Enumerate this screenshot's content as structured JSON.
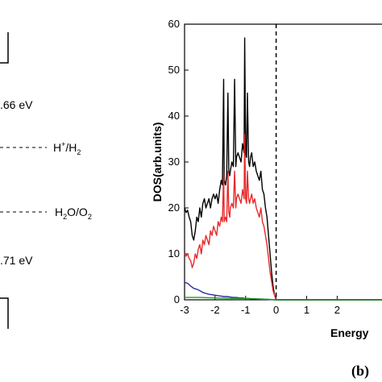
{
  "left_panel": {
    "energy_top": ".66 eV",
    "level_h": "H",
    "level_h_sup": "+",
    "level_h_rest": "/H",
    "level_h_sub": "2",
    "level_o": "H",
    "level_o_sub1": "2",
    "level_o_mid": "O/O",
    "level_o_sub2": "2",
    "energy_bottom": ".71 eV"
  },
  "panel_label": "(b)",
  "colors": {
    "total": "#000000",
    "red": "#e8292b",
    "blue": "#2b2ba3",
    "green": "#1f9a1f"
  },
  "chart_data": {
    "type": "line",
    "title": "",
    "xlabel": "Energy",
    "ylabel": "DOS(arb.units)",
    "xlim": [
      -3,
      3.6
    ],
    "ylim": [
      0,
      60
    ],
    "xticks": [
      "-3",
      "-2",
      "-1",
      "0",
      "1",
      "2"
    ],
    "yticks": [
      "0",
      "10",
      "20",
      "30",
      "40",
      "50",
      "60"
    ],
    "fermi_level": 0,
    "series": [
      {
        "color": "#000000",
        "x": [
          -3.0,
          -2.95,
          -2.9,
          -2.85,
          -2.8,
          -2.75,
          -2.7,
          -2.65,
          -2.6,
          -2.55,
          -2.5,
          -2.45,
          -2.4,
          -2.35,
          -2.3,
          -2.25,
          -2.2,
          -2.15,
          -2.1,
          -2.05,
          -2.0,
          -1.95,
          -1.9,
          -1.85,
          -1.8,
          -1.76,
          -1.72,
          -1.7,
          -1.66,
          -1.62,
          -1.58,
          -1.55,
          -1.52,
          -1.5,
          -1.45,
          -1.4,
          -1.36,
          -1.32,
          -1.3,
          -1.25,
          -1.2,
          -1.15,
          -1.1,
          -1.05,
          -1.03,
          -1.0,
          -0.97,
          -0.94,
          -0.9,
          -0.87,
          -0.84,
          -0.8,
          -0.75,
          -0.7,
          -0.65,
          -0.6,
          -0.55,
          -0.5,
          -0.45,
          -0.4,
          -0.35,
          -0.3,
          -0.25,
          -0.2,
          -0.15,
          -0.1,
          -0.05,
          0.0,
          0.5,
          1.0,
          1.5,
          2.0,
          2.5,
          3.0,
          3.6
        ],
        "y": [
          20,
          19,
          19.5,
          18,
          17,
          14,
          13,
          15,
          18,
          17,
          20,
          18,
          21,
          22,
          20,
          21,
          22,
          20,
          22,
          23,
          22,
          23,
          21,
          24,
          26,
          25,
          48,
          26,
          25,
          27,
          45,
          28,
          27,
          28,
          30,
          29,
          48,
          29,
          31,
          32,
          31,
          30,
          34,
          32,
          57,
          32,
          31,
          45,
          30,
          29,
          31,
          32,
          29,
          30,
          28,
          27,
          26,
          28,
          24,
          23,
          20,
          18,
          14,
          10,
          6,
          3,
          1,
          0,
          0,
          0,
          0,
          0,
          0,
          0,
          0
        ]
      },
      {
        "color": "#e8292b",
        "x": [
          -3.0,
          -2.95,
          -2.9,
          -2.85,
          -2.8,
          -2.75,
          -2.7,
          -2.65,
          -2.6,
          -2.55,
          -2.5,
          -2.45,
          -2.4,
          -2.35,
          -2.3,
          -2.25,
          -2.2,
          -2.15,
          -2.1,
          -2.05,
          -2.0,
          -1.95,
          -1.9,
          -1.85,
          -1.8,
          -1.76,
          -1.72,
          -1.7,
          -1.66,
          -1.62,
          -1.58,
          -1.55,
          -1.52,
          -1.5,
          -1.45,
          -1.4,
          -1.36,
          -1.32,
          -1.3,
          -1.25,
          -1.2,
          -1.15,
          -1.1,
          -1.05,
          -1.03,
          -1.0,
          -0.97,
          -0.94,
          -0.9,
          -0.87,
          -0.84,
          -0.8,
          -0.75,
          -0.7,
          -0.65,
          -0.6,
          -0.55,
          -0.5,
          -0.45,
          -0.4,
          -0.35,
          -0.3,
          -0.25,
          -0.2,
          -0.15,
          -0.1,
          -0.05,
          0.0,
          0.5,
          1.0,
          1.5,
          2.0,
          2.5,
          3.0,
          3.6
        ],
        "y": [
          10,
          9.5,
          10,
          9,
          8.5,
          7,
          8,
          10,
          9,
          11,
          12,
          10,
          13,
          12,
          14,
          13,
          12,
          15,
          14,
          16,
          15,
          14,
          17,
          16,
          18,
          17,
          28,
          17,
          18,
          17,
          28,
          19,
          18,
          20,
          21,
          20,
          28,
          20,
          22,
          23,
          22,
          21,
          24,
          22,
          36,
          22,
          21,
          28,
          22,
          21,
          22,
          23,
          21,
          22,
          20,
          19,
          18,
          20,
          17,
          16,
          14,
          12,
          9,
          6,
          4,
          2,
          1,
          0,
          0,
          0,
          0,
          0,
          0,
          0,
          0
        ]
      },
      {
        "color": "#2b2ba3",
        "x": [
          -3.0,
          -2.9,
          -2.8,
          -2.7,
          -2.6,
          -2.5,
          -2.4,
          -2.3,
          -2.2,
          -2.1,
          -2.0,
          -1.9,
          -1.8,
          -1.7,
          -1.6,
          -1.5,
          -1.4,
          -1.3,
          -1.2,
          -1.1,
          -1.0,
          -0.9,
          -0.8,
          -0.7,
          -0.5,
          -0.3,
          0.0,
          3.6
        ],
        "y": [
          3.8,
          3.6,
          3.0,
          2.5,
          2.3,
          2.0,
          1.6,
          1.4,
          1.2,
          1.1,
          1.0,
          0.9,
          0.8,
          0.7,
          0.7,
          0.6,
          0.5,
          0.5,
          0.4,
          0.4,
          0.3,
          0.3,
          0.2,
          0.2,
          0.1,
          0.1,
          0,
          0
        ]
      },
      {
        "color": "#1f9a1f",
        "x": [
          -3.0,
          -2.5,
          -2.0,
          -1.5,
          -1.0,
          -0.5,
          0.0,
          3.6
        ],
        "y": [
          0.5,
          0.5,
          0.4,
          0.3,
          0.3,
          0.2,
          0,
          0
        ]
      }
    ]
  }
}
